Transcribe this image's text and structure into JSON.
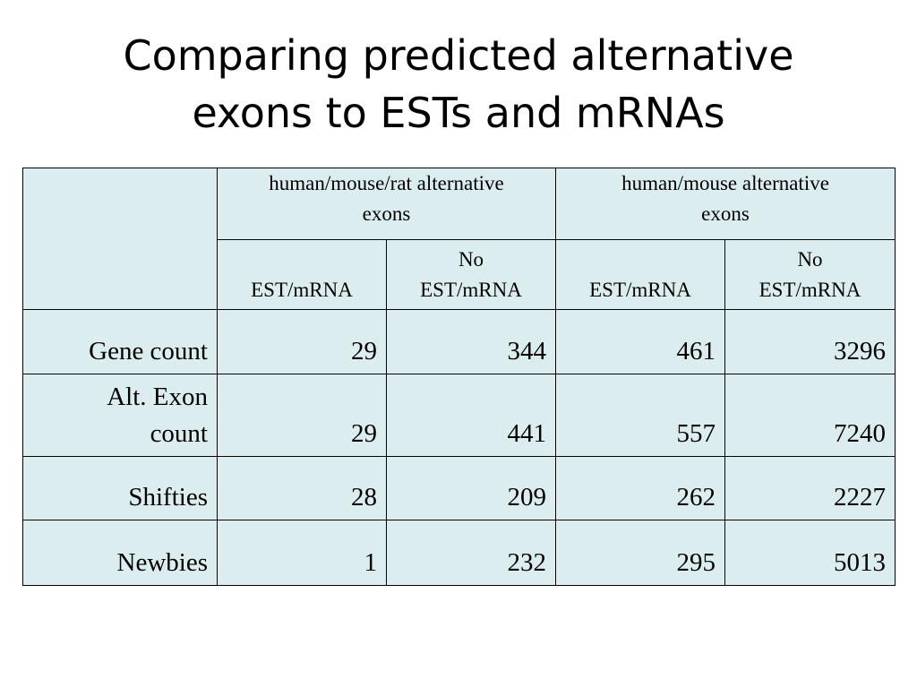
{
  "title": {
    "line1": "Comparing predicted alternative",
    "line2": "exons to ESTs and mRNAs"
  },
  "table": {
    "group_headers": [
      {
        "line1": "human/mouse/rat alternative",
        "line2": "exons"
      },
      {
        "line1": "human/mouse alternative",
        "line2": "exons"
      }
    ],
    "sub_headers": [
      {
        "line1": "",
        "line2": "EST/mRNA"
      },
      {
        "line1": "No",
        "line2": "EST/mRNA"
      },
      {
        "line1": "",
        "line2": "EST/mRNA"
      },
      {
        "line1": "No",
        "line2": "EST/mRNA"
      }
    ],
    "rows": [
      {
        "label_line1": "Gene count",
        "label_line2": "",
        "values": [
          "29",
          "344",
          "461",
          "3296"
        ]
      },
      {
        "label_line1": "Alt. Exon",
        "label_line2": "count",
        "values": [
          "29",
          "441",
          "557",
          "7240"
        ]
      },
      {
        "label_line1": "Shifties",
        "label_line2": "",
        "values": [
          "28",
          "209",
          "262",
          "2227"
        ]
      },
      {
        "label_line1": "Newbies",
        "label_line2": "",
        "values": [
          "1",
          "232",
          "295",
          "5013"
        ]
      }
    ]
  },
  "colors": {
    "cell_background": "#dcedf0",
    "border": "#000000",
    "text": "#000000"
  }
}
